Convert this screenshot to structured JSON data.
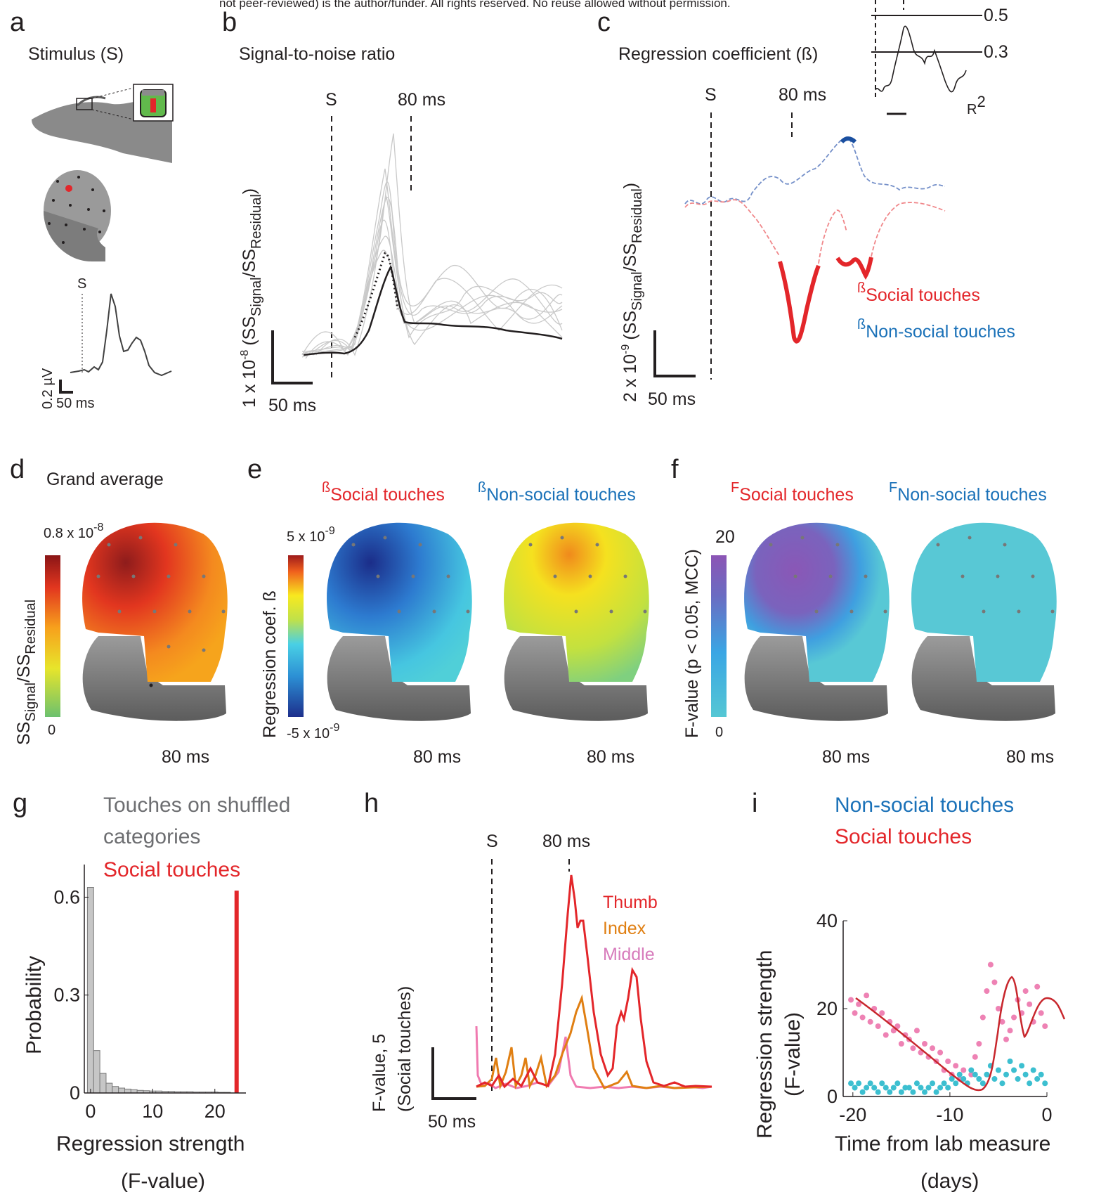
{
  "banner": "not peer-reviewed) is the author/funder. All rights reserved. No reuse allowed without permission.",
  "panels": {
    "a": {
      "letter": "a",
      "title": "Stimulus (S)",
      "s_marker": "S",
      "scale_y": "0.2 µV",
      "scale_x": "50 ms"
    },
    "b": {
      "letter": "b",
      "title": "Signal-to-noise ratio",
      "s_marker": "S",
      "ms_marker": "80 ms",
      "ylabel": "1 x 10⁻⁸ (SSSignal/SSResidual)",
      "ylabel_main": "1 x 10",
      "ylabel_exp": "-8",
      "ylabel_paren": "(SS",
      "ylabel_sub1": "Signal",
      "ylabel_slash": "/SS",
      "ylabel_sub2": "Residual",
      "ylabel_close": ")",
      "scale_x": "50 ms"
    },
    "c": {
      "letter": "c",
      "title": "Regression coefficient (ß)",
      "s_marker": "S",
      "ms_marker": "80 ms",
      "inset_values": [
        "0.5",
        "0.3"
      ],
      "inset_label": "R",
      "inset_label_sup": "2",
      "ylabel_main": "2 x 10",
      "ylabel_exp": "-9",
      "ylabel_paren": "(SS",
      "ylabel_sub1": "Signal",
      "ylabel_slash": "/SS",
      "ylabel_sub2": "Residual",
      "ylabel_close": ")",
      "scale_x": "50 ms",
      "legend_social_prefix": "ß",
      "legend_social": "Social touches",
      "legend_nonsocial_prefix": "ß",
      "legend_nonsocial": "Non-social touches"
    },
    "d": {
      "letter": "d",
      "title": "Grand average",
      "cbar_max_main": "0.8 x 10",
      "cbar_max_exp": "-8",
      "cbar_min": "0",
      "cbar_label_main": "SS",
      "cbar_label_sub1": "Signal",
      "cbar_label_slash": "/SS",
      "cbar_label_sub2": "Residual",
      "time": "80 ms"
    },
    "e": {
      "letter": "e",
      "social_prefix": "ß",
      "social": "Social touches",
      "nonsocial_prefix": "ß",
      "nonsocial": "Non-social touches",
      "cbar_max_main": "5 x 10",
      "cbar_max_exp": "-9",
      "cbar_min_main": "-5 x 10",
      "cbar_min_exp": "-9",
      "cbar_label": "Regression coef. ß",
      "time_left": "80 ms",
      "time_right": "80 ms"
    },
    "f": {
      "letter": "f",
      "social_prefix": "F",
      "social": "Social touches",
      "nonsocial_prefix": "F",
      "nonsocial": "Non-social touches",
      "cbar_max": "20",
      "cbar_min": "0",
      "cbar_label": "F-value (p < 0.05, MCC)",
      "time_left": "80 ms",
      "time_right": "80 ms"
    },
    "g": {
      "letter": "g",
      "legend_shuffled": "Touches on shuffled",
      "legend_shuffled2": "categories",
      "legend_social": "Social touches",
      "xlabel1": "Regression strength",
      "xlabel2": "(F-value)",
      "ylabel": "Probability"
    },
    "h": {
      "letter": "h",
      "s_marker": "S",
      "ms_marker": "80 ms",
      "legend": [
        "Thumb",
        "Index",
        "Middle"
      ],
      "ylabel1": "F-value, 5",
      "ylabel2": "(Social touches)",
      "scale_x": "50 ms"
    },
    "i": {
      "letter": "i",
      "legend_nonsocial": "Non-social touches",
      "legend_social": "Social touches",
      "ylabel1": "Regression strength",
      "ylabel2": "(F-value)",
      "xlabel1": "Time from lab measure",
      "xlabel2": "(days)"
    }
  },
  "colors": {
    "social": "#e3262a",
    "nonsocial": "#1a71b8",
    "shuffled": "#6d6e71",
    "thumb": "#e3262a",
    "index": "#e07f12",
    "middle": "#d77bbb",
    "scatter_social": "#ee82b4",
    "scatter_nonsocial": "#3cbfd0"
  },
  "chart_data": [
    {
      "panel": "g",
      "type": "bar",
      "x": [
        0,
        1,
        2,
        3,
        4,
        5,
        6,
        7,
        8,
        9,
        10,
        11,
        12,
        13,
        14,
        15,
        16,
        17,
        18,
        19,
        20,
        21,
        22,
        23
      ],
      "values": [
        0.63,
        0.13,
        0.06,
        0.03,
        0.02,
        0.015,
        0.012,
        0.01,
        0.008,
        0.007,
        0.006,
        0.006,
        0.005,
        0.005,
        0.004,
        0.004,
        0.004,
        0.003,
        0.003,
        0.003,
        0.003,
        0.002,
        0.002,
        0
      ],
      "observed_value": 23.5,
      "xlabel": "Regression strength (F-value)",
      "ylabel": "Probability",
      "xlim": [
        -1,
        25
      ],
      "ylim": [
        0,
        0.7
      ],
      "xticks": [
        0,
        10,
        20
      ],
      "yticks": [
        0,
        0.3,
        0.6
      ],
      "series": [
        {
          "name": "Touches on shuffled categories"
        },
        {
          "name": "Social touches"
        }
      ]
    },
    {
      "panel": "i",
      "type": "scatter",
      "xlabel": "Time from lab measure (days)",
      "ylabel": "Regression strength (F-value)",
      "xlim": [
        -21,
        0
      ],
      "ylim": [
        0,
        40
      ],
      "xticks": [
        -20,
        -10,
        0
      ],
      "yticks": [
        0,
        20,
        40
      ],
      "series": [
        {
          "name": "Social touches",
          "x": [
            -20.2,
            -19.8,
            -19.4,
            -19,
            -18.6,
            -18.2,
            -17.8,
            -17.4,
            -17,
            -16.6,
            -16.2,
            -15.8,
            -15.4,
            -15,
            -14.6,
            -14.2,
            -13.8,
            -13.4,
            -13,
            -12.6,
            -12.2,
            -11.8,
            -11.4,
            -11,
            -10.6,
            -10.2,
            -9.8,
            -9.4,
            -9,
            -8.6,
            -8.2,
            -7.8,
            -7.4,
            -7,
            -6.6,
            -6.2,
            -5.8,
            -5.4,
            -5,
            -4.6,
            -4.2,
            -3.8,
            -3.4,
            -3,
            -2.6,
            -2.2,
            -1.8,
            -1.4,
            -1,
            -0.6,
            -0.2
          ],
          "y": [
            22,
            19,
            21,
            18,
            23,
            17,
            20,
            16,
            19,
            14,
            17,
            15,
            16,
            12,
            14,
            13,
            11,
            15,
            10,
            12,
            9,
            11,
            8,
            10,
            6,
            8,
            5,
            7,
            4,
            6,
            3,
            5,
            9,
            12,
            18,
            24,
            30,
            26,
            20,
            17,
            13,
            15,
            18,
            22,
            19,
            24,
            21,
            17,
            25,
            19,
            16
          ]
        },
        {
          "name": "Non-social touches",
          "x": [
            -20.2,
            -19.8,
            -19.4,
            -19,
            -18.6,
            -18.2,
            -17.8,
            -17.4,
            -17,
            -16.6,
            -16.2,
            -15.8,
            -15.4,
            -15,
            -14.6,
            -14.2,
            -13.8,
            -13.4,
            -13,
            -12.6,
            -12.2,
            -11.8,
            -11.4,
            -11,
            -10.6,
            -10.2,
            -9.8,
            -9.4,
            -9,
            -8.6,
            -8.2,
            -7.8,
            -7.4,
            -7,
            -6.6,
            -6.2,
            -5.8,
            -5.4,
            -5,
            -4.6,
            -4.2,
            -3.8,
            -3.4,
            -3,
            -2.6,
            -2.2,
            -1.8,
            -1.4,
            -1,
            -0.6,
            -0.2
          ],
          "y": [
            3,
            2,
            3,
            1,
            2,
            3,
            2,
            1,
            3,
            2,
            1,
            2,
            3,
            1,
            2,
            2,
            1,
            3,
            2,
            1,
            2,
            3,
            1,
            2,
            3,
            2,
            4,
            3,
            5,
            4,
            3,
            6,
            5,
            4,
            3,
            5,
            7,
            4,
            6,
            3,
            5,
            8,
            6,
            4,
            7,
            5,
            3,
            6,
            4,
            5,
            3
          ]
        }
      ]
    }
  ]
}
